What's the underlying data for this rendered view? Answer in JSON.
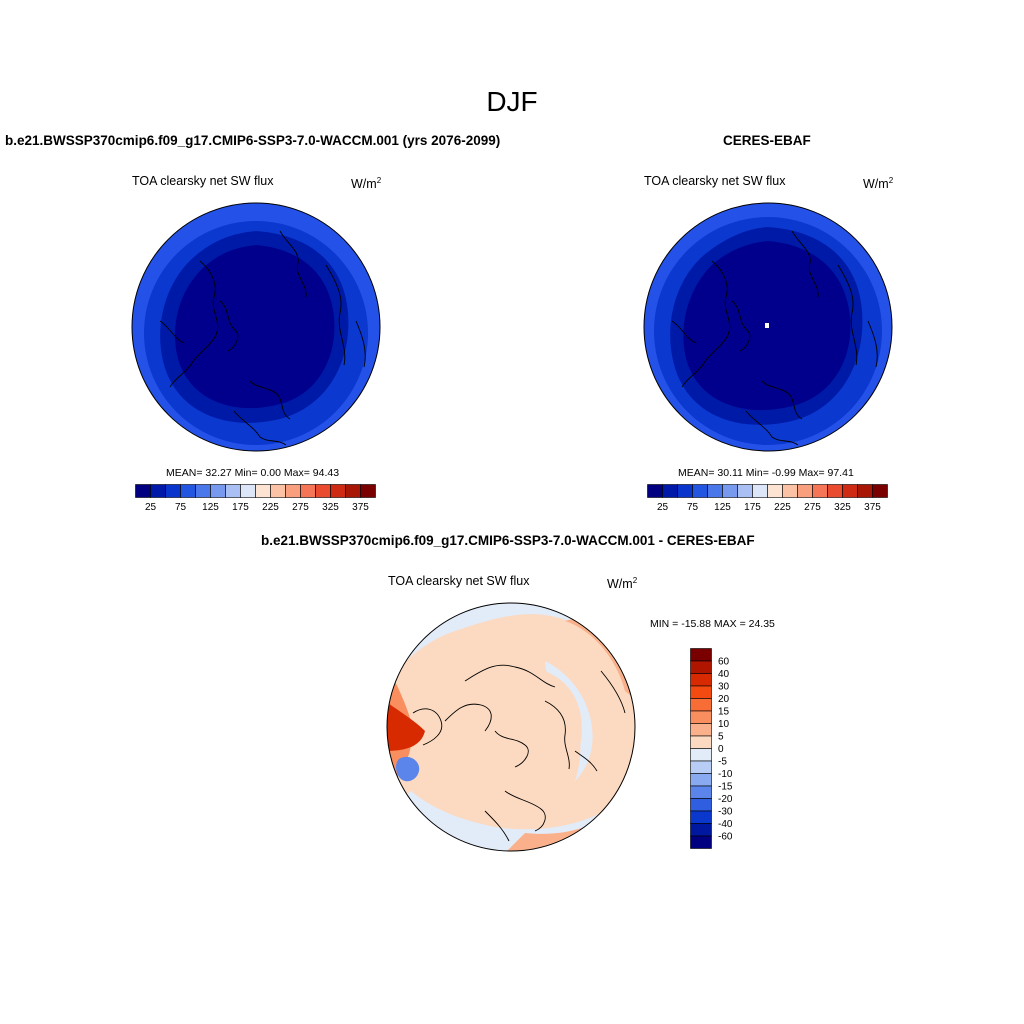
{
  "figure": {
    "season": "DJF"
  },
  "model_panel": {
    "title": "b.e21.BWSSP370cmip6.f09_g17.CMIP6-SSP3-7.0-WACCM.001 (yrs 2076-2099)",
    "field": "TOA clearsky net SW flux",
    "units": "W/m",
    "units_sup": "2",
    "stats": "MEAN=  32.27  Min=   0.00  Max=  94.43"
  },
  "obs_panel": {
    "title": "CERES-EBAF",
    "field": "TOA clearsky net SW flux",
    "units": "W/m",
    "units_sup": "2",
    "stats": "MEAN=  30.11  Min=  -0.99  Max=  97.41"
  },
  "diff_panel": {
    "title": "b.e21.BWSSP370cmip6.f09_g17.CMIP6-SSP3-7.0-WACCM.001 - CERES-EBAF",
    "field": "TOA clearsky net SW flux",
    "units": "W/m",
    "units_sup": "2",
    "minmax": "MIN = -15.88 MAX =  24.35"
  },
  "colorbar_main": {
    "colors": [
      "#000080",
      "#0019a8",
      "#0a35cc",
      "#2255e0",
      "#4a77ea",
      "#7799ee",
      "#aabff3",
      "#dde6f8",
      "#fde3d2",
      "#fcc2a6",
      "#f99f7e",
      "#f57656",
      "#ea4a2e",
      "#cf2a14",
      "#a81605",
      "#7a0000"
    ],
    "labels": [
      "25",
      "75",
      "125",
      "175",
      "225",
      "275",
      "325",
      "375"
    ]
  },
  "colorbar_diff": {
    "colors": [
      "#7a0000",
      "#b01500",
      "#d72a00",
      "#f24a10",
      "#f86c36",
      "#f98e5f",
      "#fab08a",
      "#fcdac1",
      "#e2ebf8",
      "#b7cdf5",
      "#89a9f0",
      "#5b85ea",
      "#2f5fe0",
      "#0a38cc",
      "#0018a0",
      "#000080"
    ],
    "labels": [
      "60",
      "40",
      "30",
      "20",
      "15",
      "10",
      "5",
      "0",
      "-5",
      "-10",
      "-15",
      "-20",
      "-30",
      "-40",
      "-60"
    ]
  },
  "chart_data": [
    {
      "type": "heatmap",
      "title": "b.e21.BWSSP370cmip6.f09_g17.CMIP6-SSP3-7.0-WACCM.001 (yrs 2076-2099)",
      "subtitle": "TOA clearsky net SW flux",
      "units": "W/m2",
      "mean": 32.27,
      "min": 0.0,
      "max": 94.43,
      "levels": [
        25,
        50,
        75,
        100,
        125,
        150,
        175,
        200,
        225,
        250,
        275,
        300,
        325,
        350,
        375
      ]
    },
    {
      "type": "heatmap",
      "title": "CERES-EBAF",
      "subtitle": "TOA clearsky net SW flux",
      "units": "W/m2",
      "mean": 30.11,
      "min": -0.99,
      "max": 97.41,
      "levels": [
        25,
        50,
        75,
        100,
        125,
        150,
        175,
        200,
        225,
        250,
        275,
        300,
        325,
        350,
        375
      ]
    },
    {
      "type": "heatmap",
      "title": "b.e21.BWSSP370cmip6.f09_g17.CMIP6-SSP3-7.0-WACCM.001 - CERES-EBAF",
      "subtitle": "TOA clearsky net SW flux",
      "units": "W/m2",
      "min": -15.88,
      "max": 24.35,
      "levels": [
        -60,
        -40,
        -30,
        -20,
        -15,
        -10,
        -5,
        0,
        5,
        10,
        15,
        20,
        30,
        40,
        60
      ]
    }
  ]
}
